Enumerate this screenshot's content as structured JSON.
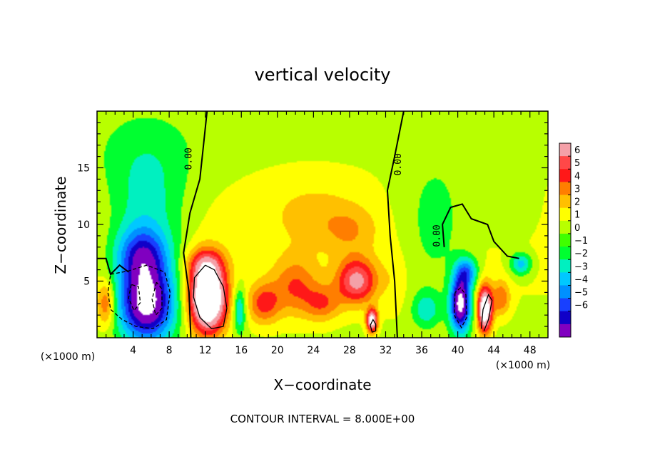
{
  "chart_data": {
    "type": "heatmap",
    "title": "vertical velocity",
    "xlabel": "X−coordinate",
    "ylabel": "Z−coordinate",
    "x_unit_left": "(×1000 m)",
    "x_unit_right": "(×1000 m)",
    "footer": "CONTOUR INTERVAL = 8.000E+00",
    "xlim": [
      0,
      50
    ],
    "ylim": [
      0,
      20
    ],
    "x_ticks": [
      4,
      8,
      12,
      16,
      20,
      24,
      28,
      32,
      36,
      40,
      44,
      48
    ],
    "y_ticks": [
      5,
      10,
      15
    ],
    "contour_label": "0.00",
    "colorbar": {
      "ticks": [
        "6",
        "5",
        "4",
        "3",
        "2",
        "1",
        "0",
        "−1",
        "−2",
        "−3",
        "−4",
        "−5",
        "−6"
      ],
      "values": [
        6,
        5,
        4,
        3,
        2,
        1,
        0,
        -1,
        -2,
        -3,
        -4,
        -5,
        -6
      ],
      "colors": [
        "#f4a0a8",
        "#ff4848",
        "#ff1818",
        "#ff7e00",
        "#ffc000",
        "#ffff00",
        "#b8ff00",
        "#40ff00",
        "#00ff30",
        "#00f0c0",
        "#00c8ff",
        "#0090ff",
        "#1840ff",
        "#1000c8",
        "#8000c0"
      ]
    },
    "blobs": [
      {
        "x": 5.5,
        "z": 3.0,
        "rx": 3.0,
        "rz": 3.3,
        "v": -9
      },
      {
        "x": 5.0,
        "z": 7.2,
        "rx": 2.8,
        "rz": 2.5,
        "v": -5
      },
      {
        "x": 5.5,
        "z": 10.5,
        "rx": 4.2,
        "rz": 5.0,
        "v": -2.4
      },
      {
        "x": 5.5,
        "z": 16.0,
        "rx": 6.0,
        "rz": 4.0,
        "v": -1.2
      },
      {
        "x": 1.0,
        "z": 3.0,
        "rx": 1.0,
        "rz": 2.0,
        "v": 3.5
      },
      {
        "x": 12.3,
        "z": 3.5,
        "rx": 2.0,
        "rz": 3.0,
        "v": 11
      },
      {
        "x": 12.0,
        "z": 6.5,
        "rx": 2.0,
        "rz": 1.4,
        "v": 3
      },
      {
        "x": 15.8,
        "z": 2.5,
        "rx": 0.7,
        "rz": 2.0,
        "v": -3.5
      },
      {
        "x": 18.5,
        "z": 3.0,
        "rx": 1.8,
        "rz": 1.8,
        "v": 3.5
      },
      {
        "x": 22.0,
        "z": 4.5,
        "rx": 2.5,
        "rz": 2.5,
        "v": 3.0
      },
      {
        "x": 25.0,
        "z": 3.0,
        "rx": 2.0,
        "rz": 1.6,
        "v": 2.8
      },
      {
        "x": 28.8,
        "z": 5.0,
        "rx": 2.2,
        "rz": 2.0,
        "v": 5.5
      },
      {
        "x": 30.5,
        "z": 1.5,
        "rx": 0.6,
        "rz": 1.0,
        "v": 8
      },
      {
        "x": 24.0,
        "z": 11.0,
        "rx": 5.0,
        "rz": 3.0,
        "v": 1.2
      },
      {
        "x": 28.0,
        "z": 9.5,
        "rx": 3.0,
        "rz": 2.0,
        "v": 1.5
      },
      {
        "x": 40.3,
        "z": 3.0,
        "rx": 1.1,
        "rz": 2.4,
        "v": -9
      },
      {
        "x": 41.0,
        "z": 5.8,
        "rx": 1.2,
        "rz": 1.3,
        "v": -4
      },
      {
        "x": 43.0,
        "z": 2.5,
        "rx": 0.8,
        "rz": 2.0,
        "v": 9
      },
      {
        "x": 44.8,
        "z": 3.5,
        "rx": 1.0,
        "rz": 1.5,
        "v": 3
      },
      {
        "x": 37.5,
        "z": 10.0,
        "rx": 4.0,
        "rz": 6.0,
        "v": -1.6
      },
      {
        "x": 36.5,
        "z": 2.5,
        "rx": 1.5,
        "rz": 1.5,
        "v": -2.5
      },
      {
        "x": 47.0,
        "z": 6.5,
        "rx": 1.2,
        "rz": 1.0,
        "v": -3.5
      },
      {
        "x": 46.0,
        "z": 11.0,
        "rx": 3.0,
        "rz": 3.0,
        "v": -0.8
      },
      {
        "x": 33.0,
        "z": 5.0,
        "rx": 1.5,
        "rz": 3.0,
        "v": 0.8
      }
    ],
    "zero_contours": [
      [
        [
          10.4,
          0
        ],
        [
          10.2,
          4
        ],
        [
          9.6,
          7.5
        ],
        [
          10.3,
          11
        ],
        [
          11.4,
          14
        ],
        [
          11.8,
          17
        ],
        [
          12.2,
          20
        ]
      ],
      [
        [
          33.3,
          0
        ],
        [
          33.0,
          5
        ],
        [
          32.5,
          9
        ],
        [
          32.2,
          13
        ],
        [
          33.0,
          16
        ],
        [
          34.0,
          20
        ]
      ],
      [
        [
          38.5,
          8
        ],
        [
          38.3,
          10
        ],
        [
          39.2,
          11.5
        ],
        [
          40.5,
          11.8
        ],
        [
          41.5,
          10.5
        ],
        [
          43.3,
          10.0
        ],
        [
          44.0,
          8.5
        ],
        [
          45.5,
          7.2
        ],
        [
          46.8,
          7.0
        ]
      ],
      [
        [
          0,
          7.0
        ],
        [
          1.0,
          7.0
        ],
        [
          1.5,
          5.6
        ],
        [
          2.5,
          6.4
        ],
        [
          3.5,
          5.8
        ]
      ]
    ],
    "pos_contours": [
      [
        [
          12.0,
          6.4
        ],
        [
          10.8,
          5.3
        ],
        [
          10.7,
          3.6
        ],
        [
          11.4,
          1.8
        ],
        [
          12.7,
          0.8
        ],
        [
          14.0,
          1.0
        ],
        [
          14.4,
          2.6
        ],
        [
          14.0,
          4.5
        ],
        [
          13.0,
          6.0
        ],
        [
          12.0,
          6.4
        ]
      ],
      [
        [
          30.3,
          1.1
        ],
        [
          30.5,
          0.5
        ],
        [
          30.9,
          0.6
        ],
        [
          30.9,
          1.2
        ],
        [
          30.6,
          1.6
        ],
        [
          30.3,
          1.1
        ]
      ],
      [
        [
          42.6,
          0.8
        ],
        [
          42.8,
          2.5
        ],
        [
          43.4,
          3.8
        ],
        [
          43.8,
          3.3
        ],
        [
          43.4,
          1.6
        ],
        [
          42.9,
          0.6
        ]
      ]
    ],
    "neg_contours": [
      [
        [
          1.5,
          5.6
        ],
        [
          3.5,
          5.9
        ],
        [
          5.5,
          6.4
        ],
        [
          7.5,
          5.8
        ],
        [
          8.1,
          4.0
        ],
        [
          7.7,
          1.6
        ],
        [
          6.2,
          0.8
        ],
        [
          4.3,
          1.0
        ],
        [
          2.8,
          1.6
        ],
        [
          1.5,
          2.5
        ],
        [
          1.2,
          4.0
        ],
        [
          1.5,
          5.6
        ]
      ],
      [
        [
          3.8,
          4.7
        ],
        [
          3.5,
          3.5
        ],
        [
          4.1,
          2.4
        ],
        [
          4.8,
          3.1
        ],
        [
          4.6,
          4.5
        ],
        [
          3.8,
          4.7
        ]
      ],
      [
        [
          6.6,
          4.9
        ],
        [
          6.1,
          3.4
        ],
        [
          6.5,
          2.0
        ],
        [
          7.2,
          2.6
        ],
        [
          7.2,
          4.3
        ],
        [
          6.6,
          4.9
        ]
      ],
      [
        [
          39.7,
          4.0
        ],
        [
          39.6,
          2.0
        ],
        [
          40.4,
          0.9
        ],
        [
          41.0,
          1.8
        ],
        [
          40.9,
          3.8
        ],
        [
          40.3,
          4.4
        ],
        [
          39.7,
          4.0
        ]
      ]
    ]
  }
}
